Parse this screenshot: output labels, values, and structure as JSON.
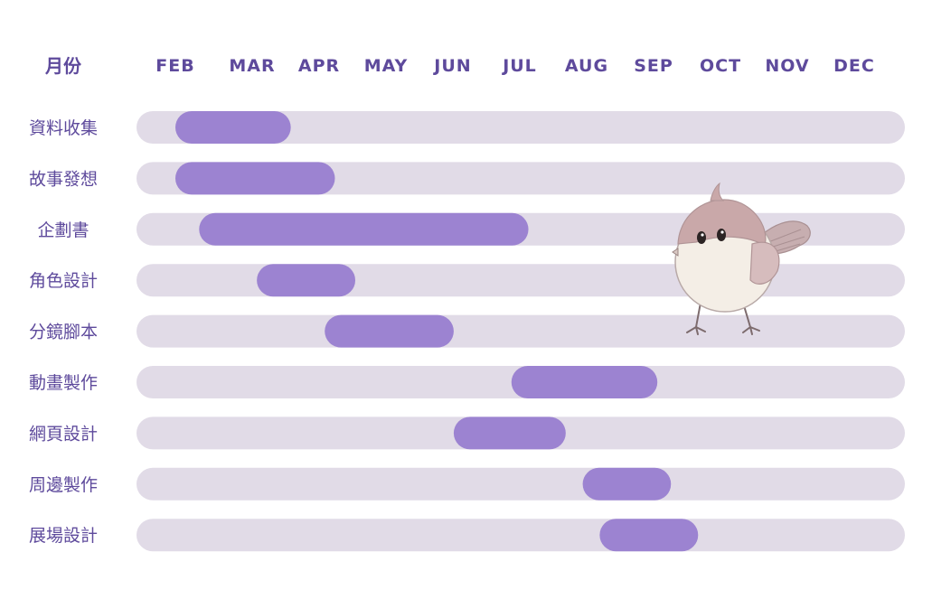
{
  "chart_data": {
    "type": "gantt",
    "header_label": "月份",
    "months": [
      "FEB",
      "MAR",
      "APR",
      "MAY",
      "JUN",
      "JUL",
      "AUG",
      "SEP",
      "OCT",
      "NOV",
      "DEC"
    ],
    "tasks": [
      {
        "name": "資料收集",
        "start": 0.0,
        "end": 1.7
      },
      {
        "name": "故事發想",
        "start": 0.0,
        "end": 2.35
      },
      {
        "name": "企劃書",
        "start": 0.35,
        "end": 5.2
      },
      {
        "name": "角色設計",
        "start": 1.2,
        "end": 2.65
      },
      {
        "name": "分鏡腳本",
        "start": 2.2,
        "end": 4.1
      },
      {
        "name": "動畫製作",
        "start": 4.95,
        "end": 7.1
      },
      {
        "name": "網頁設計",
        "start": 4.1,
        "end": 5.75
      },
      {
        "name": "周邊製作",
        "start": 6.0,
        "end": 7.3
      },
      {
        "name": "展場設計",
        "start": 6.25,
        "end": 7.7
      }
    ]
  },
  "colors": {
    "bar": "#9c83d1",
    "track": "#e1dbe7",
    "text": "#5e4a9c"
  },
  "decoration": "bird-illustration"
}
